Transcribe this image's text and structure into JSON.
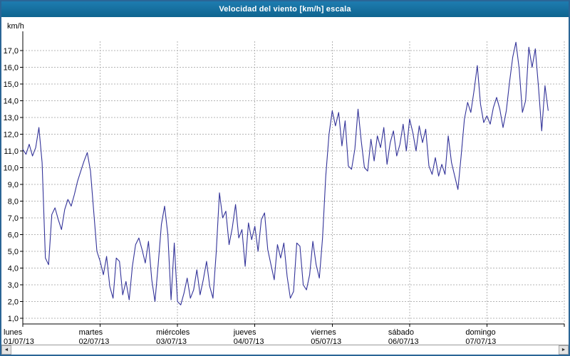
{
  "window": {
    "title": "Velocidad del viento [km/h] escala"
  },
  "scrollbar": {
    "left_arrow": "◄",
    "right_arrow": "►"
  },
  "chart_data": {
    "type": "line",
    "title": "Velocidad del viento [km/h] escala",
    "ylabel": "km/h",
    "ylim": [
      1.0,
      17.6
    ],
    "grid": {
      "style": "dashed",
      "color": "#b4b4b4"
    },
    "legend": "none",
    "ytick_values": [
      1,
      2,
      3,
      4,
      5,
      6,
      7,
      8,
      9,
      10,
      11,
      12,
      13,
      14,
      15,
      16,
      17
    ],
    "ytick_labels": [
      "1,0",
      "2,0",
      "3,0",
      "4,0",
      "5,0",
      "6,0",
      "7,0",
      "8,0",
      "9,0",
      "10,0",
      "11,0",
      "12,0",
      "13,0",
      "14,0",
      "15,0",
      "16,0",
      "17,0"
    ],
    "x_days": [
      {
        "name": "lunes",
        "date": "01/07/13"
      },
      {
        "name": "martes",
        "date": "02/07/13"
      },
      {
        "name": "miércoles",
        "date": "03/07/13"
      },
      {
        "name": "jueves",
        "date": "04/07/13"
      },
      {
        "name": "viernes",
        "date": "05/07/13"
      },
      {
        "name": "sábado",
        "date": "06/07/13"
      },
      {
        "name": "domingo",
        "date": "07/07/13"
      }
    ],
    "points_per_day": 24,
    "series": [
      {
        "name": "Velocidad del viento",
        "color": "#333399",
        "values": [
          11.1,
          10.8,
          11.4,
          10.7,
          11.2,
          12.4,
          10.3,
          4.6,
          4.2,
          7.2,
          7.6,
          6.9,
          6.3,
          7.5,
          8.1,
          7.7,
          8.4,
          9.2,
          9.8,
          10.4,
          10.9,
          9.8,
          7.4,
          5.0,
          4.4,
          3.6,
          4.7,
          2.9,
          2.2,
          4.6,
          4.4,
          2.4,
          3.2,
          2.1,
          4.1,
          5.4,
          5.8,
          5.1,
          4.3,
          5.6,
          3.3,
          2.0,
          4.2,
          6.6,
          7.7,
          6.0,
          2.1,
          5.5,
          2.0,
          1.8,
          2.5,
          3.4,
          2.2,
          2.7,
          3.9,
          2.4,
          3.3,
          4.4,
          2.9,
          2.2,
          4.9,
          8.5,
          7.0,
          7.4,
          5.4,
          6.4,
          7.8,
          5.8,
          6.3,
          4.1,
          6.7,
          5.7,
          6.5,
          5.0,
          6.9,
          7.3,
          5.1,
          4.2,
          3.3,
          5.4,
          4.6,
          5.5,
          3.5,
          2.2,
          2.6,
          5.5,
          5.3,
          3.0,
          2.7,
          3.6,
          5.6,
          4.2,
          3.4,
          5.8,
          9.5,
          12.0,
          13.4,
          12.5,
          13.3,
          11.3,
          12.8,
          10.1,
          9.9,
          11.1,
          13.5,
          11.6,
          10.0,
          9.8,
          11.7,
          10.4,
          11.9,
          11.2,
          12.4,
          10.2,
          11.5,
          12.2,
          10.7,
          11.4,
          12.6,
          11.0,
          12.9,
          12.1,
          11.0,
          12.5,
          11.5,
          12.3,
          10.1,
          9.6,
          10.6,
          9.5,
          10.2,
          9.6,
          11.9,
          10.3,
          9.5,
          8.7,
          10.7,
          12.9,
          13.9,
          13.3,
          14.6,
          16.1,
          13.8,
          12.7,
          13.1,
          12.6,
          13.6,
          14.2,
          13.5,
          12.4,
          13.4,
          15.1,
          16.6,
          17.5,
          15.9,
          13.3,
          14.0,
          17.2,
          16.0,
          17.1,
          14.8,
          12.2,
          14.9,
          13.4
        ]
      }
    ]
  }
}
